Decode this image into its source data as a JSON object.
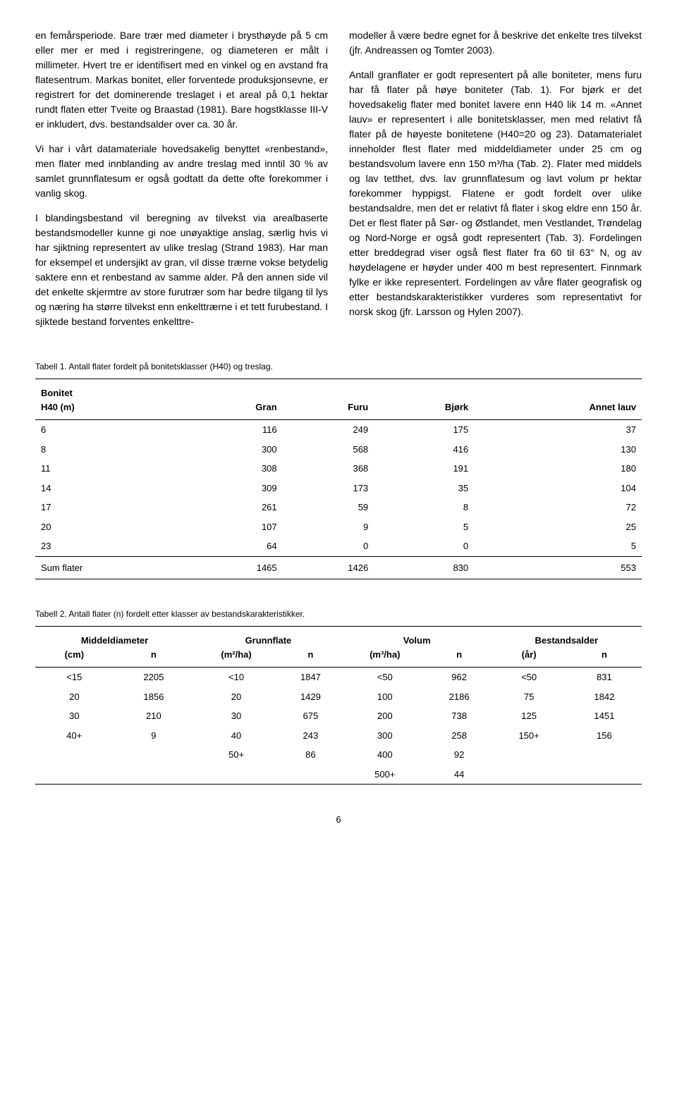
{
  "left_column": {
    "p1": "en femårsperiode. Bare trær med diameter i brysthøyde på 5 cm eller mer er med i registreringene, og diameteren er målt i millimeter. Hvert tre er identifisert med en vinkel og en avstand fra flatesentrum. Markas bonitet, eller forventede produksjonsevne, er registrert for det dominerende treslaget i et areal på 0,1 hektar rundt flaten etter Tveite og Braastad (1981). Bare hogstklasse III-V er inkludert, dvs. bestandsalder over ca. 30 år.",
    "p2": "Vi har i vårt datamateriale hovedsakelig benyttet «renbestand», men flater med innblanding av andre treslag med inntil 30 % av samlet grunnflatesum er også godtatt da dette ofte forekommer i vanlig skog.",
    "p3": "I blandingsbestand vil beregning av tilvekst via arealbaserte bestandsmodeller kunne gi noe unøyaktige anslag, særlig hvis vi har sjiktning representert av ulike treslag (Strand 1983). Har man for eksempel et undersjikt av gran, vil disse trærne vokse betydelig saktere enn et renbestand av samme alder. På den annen side vil det enkelte skjermtre av store furutrær som har bedre tilgang til lys og næring ha større tilvekst enn enkelttrærne i et tett furubestand. I sjiktede bestand forventes enkelttre-"
  },
  "right_column": {
    "p1": "modeller å være bedre egnet for å beskrive det enkelte tres tilvekst (jfr. Andreassen og Tomter 2003).",
    "p2": "Antall granflater er godt representert på alle boniteter, mens furu har få flater på høye boniteter (Tab. 1). For bjørk er det hovedsakelig flater med bonitet lavere enn H40 lik 14 m. «Annet lauv» er representert i alle bonitetsklasser, men med relativt få flater på de høyeste bonitetene (H40=20 og 23). Datamaterialet inneholder flest flater med middeldiameter under 25 cm og bestandsvolum lavere enn 150 m³/ha (Tab. 2). Flater med middels og lav tetthet, dvs. lav grunnflatesum og lavt volum pr hektar forekommer hyppigst. Flatene er godt fordelt over ulike bestandsaldre, men det er relativt få flater i skog eldre enn 150 år. Det er flest flater på Sør- og Østlandet, men Vestlandet, Trøndelag og Nord-Norge er også godt representert (Tab. 3). Fordelingen etter breddegrad viser også flest flater fra 60 til 63° N, og av høydelagene er høyder under 400 m best representert. Finnmark fylke er ikke representert. Fordelingen av våre flater geografisk og etter bestandskarakteristikker vurderes som representativt for norsk skog (jfr. Larsson og Hylen 2007)."
  },
  "table1": {
    "caption": "Tabell 1. Antall flater fordelt på bonitetsklasser (H40) og treslag.",
    "headers": {
      "bonitet": "Bonitet",
      "h40": "H40 (m)",
      "gran": "Gran",
      "furu": "Furu",
      "bjork": "Bjørk",
      "annet": "Annet lauv"
    },
    "rows": [
      {
        "h40": "6",
        "gran": "116",
        "furu": "249",
        "bjork": "175",
        "annet": "37"
      },
      {
        "h40": "8",
        "gran": "300",
        "furu": "568",
        "bjork": "416",
        "annet": "130"
      },
      {
        "h40": "11",
        "gran": "308",
        "furu": "368",
        "bjork": "191",
        "annet": "180"
      },
      {
        "h40": "14",
        "gran": "309",
        "furu": "173",
        "bjork": "35",
        "annet": "104"
      },
      {
        "h40": "17",
        "gran": "261",
        "furu": "59",
        "bjork": "8",
        "annet": "72"
      },
      {
        "h40": "20",
        "gran": "107",
        "furu": "9",
        "bjork": "5",
        "annet": "25"
      },
      {
        "h40": "23",
        "gran": "64",
        "furu": "0",
        "bjork": "0",
        "annet": "5"
      }
    ],
    "sum": {
      "label": "Sum flater",
      "gran": "1465",
      "furu": "1426",
      "bjork": "830",
      "annet": "553"
    }
  },
  "table2": {
    "caption": "Tabell 2. Antall flater (n) fordelt etter klasser av bestandskarakteristikker.",
    "headers": {
      "middel": "Middeldiameter",
      "grunn": "Grunnflate",
      "volum": "Volum",
      "alder": "Bestandsalder",
      "cm": "(cm)",
      "n": "n",
      "m2ha": "(m²/ha)",
      "m3ha": "(m³/ha)",
      "ar": "(år)"
    },
    "rows": [
      {
        "c1": "<15",
        "c2": "2205",
        "c3": "<10",
        "c4": "1847",
        "c5": "<50",
        "c6": "962",
        "c7": "<50",
        "c8": "831"
      },
      {
        "c1": "20",
        "c2": "1856",
        "c3": "20",
        "c4": "1429",
        "c5": "100",
        "c6": "2186",
        "c7": "75",
        "c8": "1842"
      },
      {
        "c1": "30",
        "c2": "210",
        "c3": "30",
        "c4": "675",
        "c5": "200",
        "c6": "738",
        "c7": "125",
        "c8": "1451"
      },
      {
        "c1": "40+",
        "c2": "9",
        "c3": "40",
        "c4": "243",
        "c5": "300",
        "c6": "258",
        "c7": "150+",
        "c8": "156"
      },
      {
        "c1": "",
        "c2": "",
        "c3": "50+",
        "c4": "86",
        "c5": "400",
        "c6": "92",
        "c7": "",
        "c8": ""
      },
      {
        "c1": "",
        "c2": "",
        "c3": "",
        "c4": "",
        "c5": "500+",
        "c6": "44",
        "c7": "",
        "c8": ""
      }
    ]
  },
  "page_number": "6"
}
